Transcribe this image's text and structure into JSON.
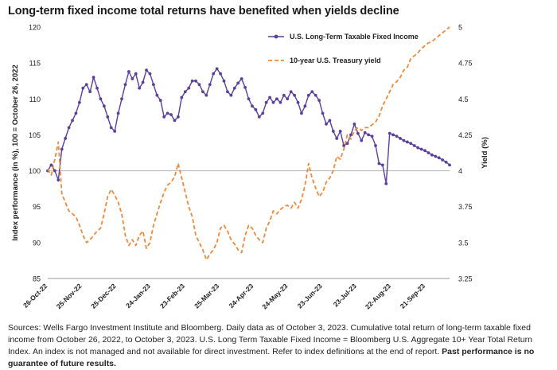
{
  "title": "Long-term fixed income total returns have benefited when yields decline",
  "footnote": {
    "text": "Sources: Wells Fargo Investment Institute and Bloomberg. Daily data as of October 3, 2023. Cumulative total return of long-term taxable fixed income from October 26, 2022, to October 3, 2023. U.S. Long Term Taxable Fixed Income = Bloomberg U.S. Aggregate 10+ Year Total Return Index. An index is not managed and not available for direct investment. Refer to index definitions at the end of report.",
    "bold": "Past performance is no guarantee of future results."
  },
  "chart_data": {
    "type": "line",
    "ylabel": "Index performance (in %), 100 = October 26, 2022",
    "y2label": "Yield (%)",
    "ylim": [
      85,
      120
    ],
    "yticks": [
      "85",
      "90",
      "95",
      "100",
      "105",
      "110",
      "115",
      "120"
    ],
    "y2lim": [
      3.25,
      5
    ],
    "y2ticks": [
      "3.25",
      "3.5",
      "3.75",
      "4",
      "4.25",
      "4.5",
      "4.75",
      "5"
    ],
    "x_ticks": [
      "26-Oct-22",
      "25-Nov-22",
      "25-Dec-22",
      "24-Jan-23",
      "23-Feb-23",
      "25-Mar-23",
      "24-Apr-23",
      "24-May-23",
      "23-Jun-23",
      "23-Jul-23",
      "22-Aug-23",
      "21-Sep-23"
    ],
    "reference_line": 100,
    "legend": "top-right",
    "series": [
      {
        "name": "U.S. Long-Term Taxable Fixed Income",
        "axis": "left",
        "color": "#5b3f9b",
        "style": "solid-markers",
        "x": [
          0,
          3,
          6,
          9,
          12,
          15,
          18,
          21,
          24,
          27,
          30,
          33,
          36,
          39,
          42,
          45,
          48,
          51,
          54,
          57,
          60,
          63,
          66,
          69,
          72,
          75,
          78,
          81,
          84,
          87,
          90,
          93,
          96,
          99,
          102,
          105,
          108,
          111,
          114,
          117,
          120,
          123,
          126,
          129,
          132,
          135,
          138,
          141,
          144,
          147,
          150,
          153,
          156,
          159,
          162,
          165,
          168,
          171,
          174,
          177,
          180,
          183,
          186,
          189,
          192,
          195,
          198,
          201,
          204,
          207,
          210,
          213,
          216,
          219,
          222,
          225,
          228,
          231,
          234,
          237,
          240,
          243,
          246,
          249,
          252,
          255,
          258,
          261,
          264,
          267,
          270,
          273,
          276,
          279,
          282,
          285,
          288,
          291,
          294,
          297,
          300,
          303,
          306,
          309,
          312,
          315,
          318,
          321,
          324,
          327,
          330,
          333,
          336,
          339,
          342
        ],
        "values": [
          100,
          100.8,
          100,
          98.7,
          103,
          104.5,
          106,
          107,
          108,
          109.5,
          111.5,
          112,
          111,
          113,
          111.5,
          110,
          109,
          107.5,
          106,
          105.5,
          108,
          110,
          112,
          113.8,
          112.8,
          113.5,
          111.5,
          112.3,
          114,
          113.5,
          112,
          110.5,
          109.8,
          107.5,
          108,
          107.8,
          107,
          107.5,
          110.2,
          111,
          111.5,
          112.5,
          112.5,
          112,
          111,
          110.5,
          112,
          113.5,
          114.2,
          113.5,
          112.5,
          111,
          110.5,
          111.5,
          112.2,
          112.8,
          111.6,
          110,
          109,
          108.5,
          107.5,
          108,
          109.5,
          110.2,
          109.5,
          110,
          109.5,
          110.5,
          110,
          111,
          110.5,
          109.5,
          108,
          109,
          110.5,
          111,
          110.5,
          109.8,
          108,
          106.5,
          107,
          105.5,
          104.5,
          105.5,
          103.5,
          103.8,
          105,
          106.5,
          105.2,
          104.2,
          105.3,
          105,
          104.8,
          103.5,
          101,
          100.8,
          98.2,
          105.2,
          105,
          104.8,
          104.5,
          104.2,
          104,
          103.8,
          103.5,
          103.2,
          103,
          102.8,
          102.5,
          102.2,
          102,
          101.8,
          101.5,
          101.2,
          100.8
        ]
      },
      {
        "name": "10-year U.S. Treasury yield",
        "axis": "right",
        "color": "#f08a3c",
        "style": "dashed",
        "x": [
          0,
          3,
          6,
          9,
          12,
          15,
          18,
          21,
          24,
          27,
          30,
          33,
          36,
          39,
          42,
          45,
          48,
          51,
          54,
          57,
          60,
          63,
          66,
          69,
          72,
          75,
          78,
          81,
          84,
          87,
          90,
          93,
          96,
          99,
          102,
          105,
          108,
          111,
          114,
          117,
          120,
          123,
          126,
          129,
          132,
          135,
          138,
          141,
          144,
          147,
          150,
          153,
          156,
          159,
          162,
          165,
          168,
          171,
          174,
          177,
          180,
          183,
          186,
          189,
          192,
          195,
          198,
          201,
          204,
          207,
          210,
          213,
          216,
          219,
          222,
          225,
          228,
          231,
          234,
          237,
          240,
          243,
          246,
          249,
          252,
          255,
          258,
          261,
          264,
          267,
          270,
          273,
          276,
          279,
          282,
          285,
          288,
          291,
          294,
          297,
          300,
          303,
          306,
          309,
          312,
          315,
          318,
          321,
          324,
          327,
          330,
          333,
          336,
          339,
          342
        ],
        "values": [
          4.01,
          3.97,
          4.08,
          4.2,
          3.84,
          3.78,
          3.72,
          3.7,
          3.68,
          3.62,
          3.55,
          3.5,
          3.52,
          3.55,
          3.58,
          3.6,
          3.7,
          3.82,
          3.87,
          3.83,
          3.78,
          3.7,
          3.55,
          3.48,
          3.52,
          3.48,
          3.55,
          3.58,
          3.46,
          3.5,
          3.62,
          3.7,
          3.78,
          3.85,
          3.9,
          3.92,
          3.96,
          4.05,
          3.95,
          3.85,
          3.75,
          3.68,
          3.55,
          3.5,
          3.45,
          3.38,
          3.42,
          3.45,
          3.5,
          3.6,
          3.62,
          3.58,
          3.52,
          3.49,
          3.45,
          3.43,
          3.55,
          3.62,
          3.6,
          3.55,
          3.52,
          3.5,
          3.6,
          3.65,
          3.72,
          3.7,
          3.73,
          3.75,
          3.76,
          3.74,
          3.78,
          3.74,
          3.8,
          3.9,
          4.05,
          3.95,
          3.88,
          3.82,
          3.85,
          3.92,
          3.95,
          4.0,
          4.1,
          4.08,
          4.15,
          4.25,
          4.22,
          4.28,
          4.3,
          4.28,
          4.3,
          4.3,
          4.32,
          4.34,
          4.38,
          4.45,
          4.5,
          4.55,
          4.6,
          4.62,
          4.65,
          4.7,
          4.72,
          4.78,
          4.8,
          4.82,
          4.85,
          4.87,
          4.89,
          4.9,
          4.92,
          4.94,
          4.96,
          4.98,
          5.0
        ]
      }
    ]
  }
}
